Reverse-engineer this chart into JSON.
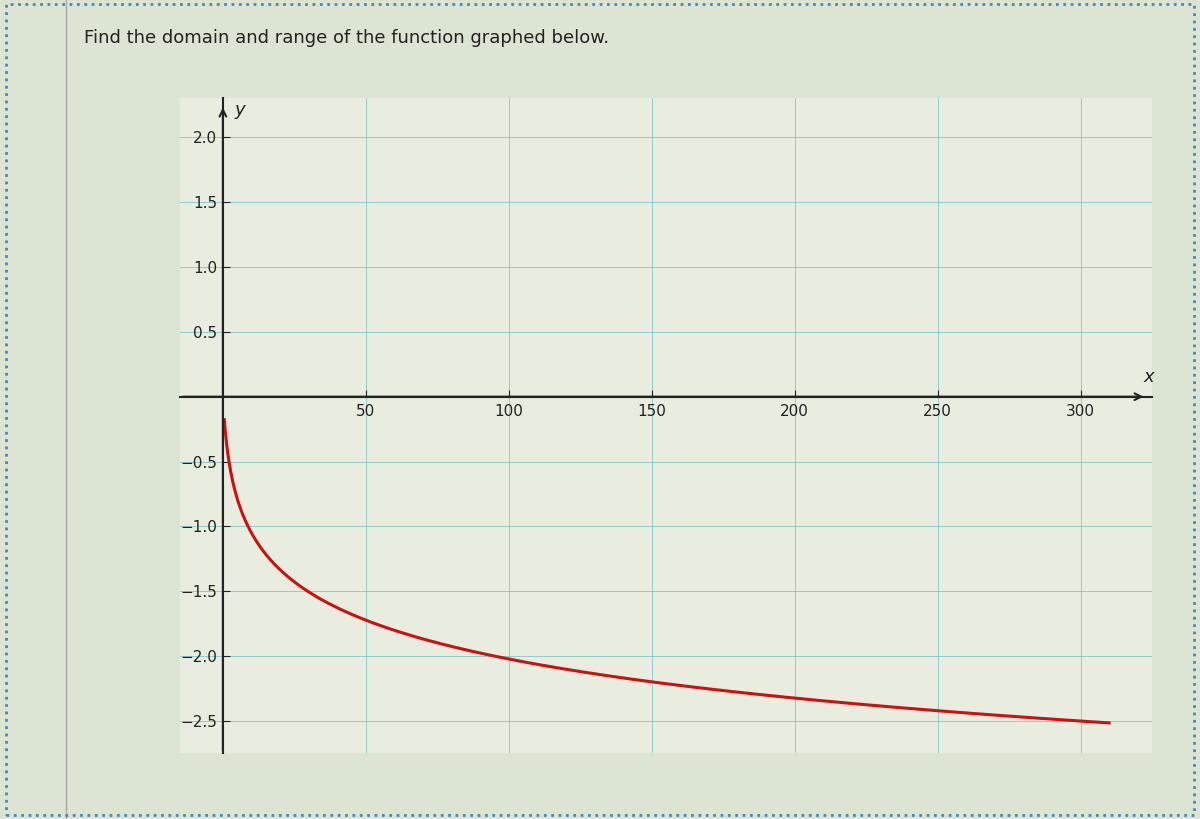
{
  "title": "Find the domain and range of the function graphed below.",
  "title_fontsize": 13,
  "xlabel": "x",
  "ylabel": "y",
  "xlim": [
    -15,
    325
  ],
  "ylim": [
    -2.75,
    2.3
  ],
  "x_ticks": [
    50,
    100,
    150,
    200,
    250,
    300
  ],
  "y_ticks": [
    -2.5,
    -2.0,
    -1.5,
    -1.0,
    -0.5,
    0.5,
    1.0,
    1.5,
    2.0
  ],
  "curve_color": "#cc1111",
  "curve_linewidth": 2.2,
  "grid_color": "#7ec8c8",
  "grid_linewidth": 0.7,
  "grid_alpha": 0.85,
  "bg_color": "#e8ede0",
  "fig_bg_color": "#dce4d4",
  "axis_color": "#222222",
  "text_color": "#222222",
  "tick_fontsize": 11,
  "label_fontsize": 13,
  "func_a": -2.7,
  "func_k": 0.35,
  "x_start": 0.5,
  "x_end": 310,
  "border_color": "#4488bb",
  "border_linewidth": 2.0
}
